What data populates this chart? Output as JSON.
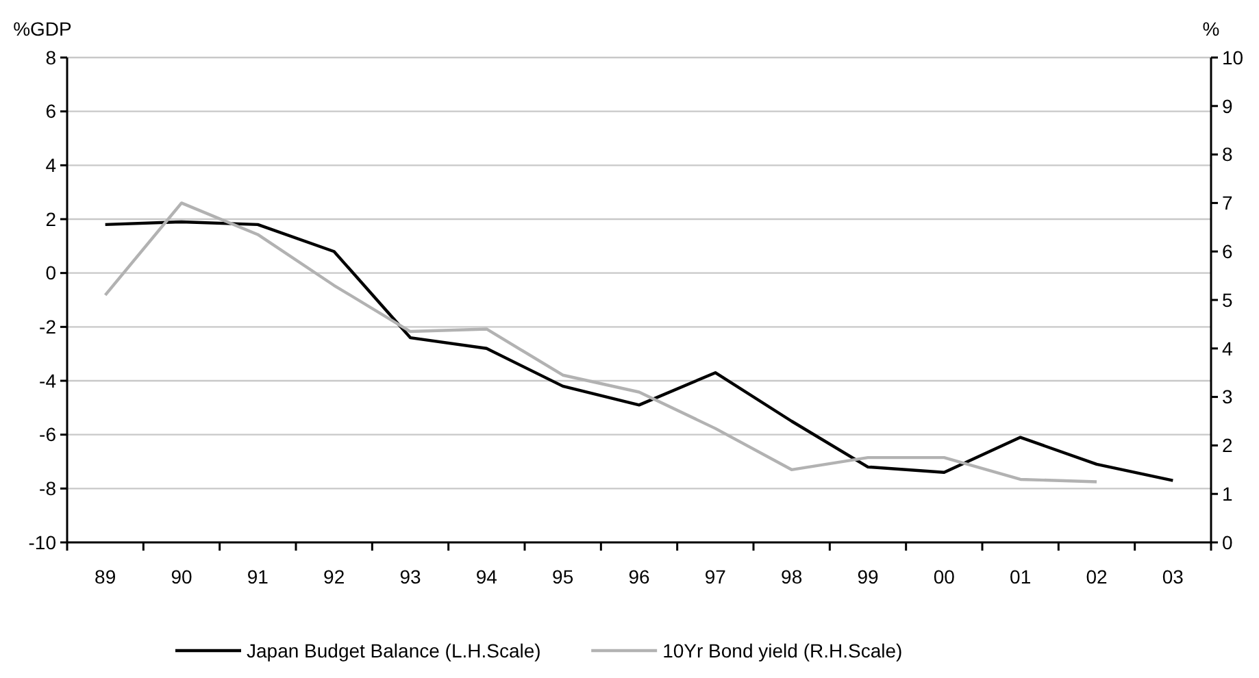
{
  "chart_data": {
    "type": "line",
    "ylabel": "%GDP",
    "y2label": "%",
    "categories": [
      "89",
      "90",
      "91",
      "92",
      "93",
      "94",
      "95",
      "96",
      "97",
      "98",
      "99",
      "00",
      "01",
      "02",
      "03"
    ],
    "series": [
      {
        "name": "Japan Budget Balance (L.H.Scale)",
        "color": "#000000",
        "values": [
          1.8,
          1.9,
          1.8,
          0.8,
          -2.4,
          -2.8,
          -4.2,
          -4.9,
          -3.7,
          -5.5,
          -7.2,
          -7.4,
          -6.1,
          -7.1,
          -7.7
        ]
      },
      {
        "name": "10Yr Bond yield (R.H.Scale)",
        "color": "#b2b2b2",
        "axis": "y2",
        "values": [
          5.1,
          7.0,
          6.35,
          5.3,
          4.35,
          4.4,
          3.45,
          3.1,
          2.35,
          1.5,
          1.75,
          1.75,
          1.3,
          1.25,
          null
        ]
      }
    ],
    "ylim": [
      -10,
      8
    ],
    "yticks": [
      -10,
      -8,
      -6,
      -4,
      -2,
      0,
      2,
      4,
      6,
      8
    ],
    "y2lim": [
      0,
      10
    ],
    "y2ticks": [
      0,
      1,
      2,
      3,
      4,
      5,
      6,
      7,
      8,
      9,
      10
    ],
    "grid": "y",
    "legend": "bottom",
    "marker": "none",
    "line_style": "solid"
  }
}
